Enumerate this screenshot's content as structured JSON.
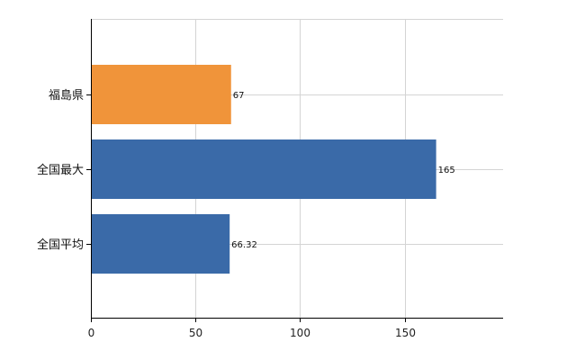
{
  "chart_data": {
    "type": "bar",
    "orientation": "horizontal",
    "categories": [
      "福島県",
      "全国最大",
      "全国平均"
    ],
    "values": [
      67,
      165,
      66.32
    ],
    "value_labels": [
      "67",
      "165",
      "66.32"
    ],
    "bar_colors": [
      "#f0943a",
      "#3a6aa8",
      "#3a6aa8"
    ],
    "xlim": [
      0,
      197
    ],
    "xticks": [
      0,
      50,
      100,
      150
    ],
    "xtick_labels": [
      "0",
      "50",
      "100",
      "150"
    ],
    "grid": true,
    "title": "",
    "xlabel": "",
    "ylabel": ""
  }
}
